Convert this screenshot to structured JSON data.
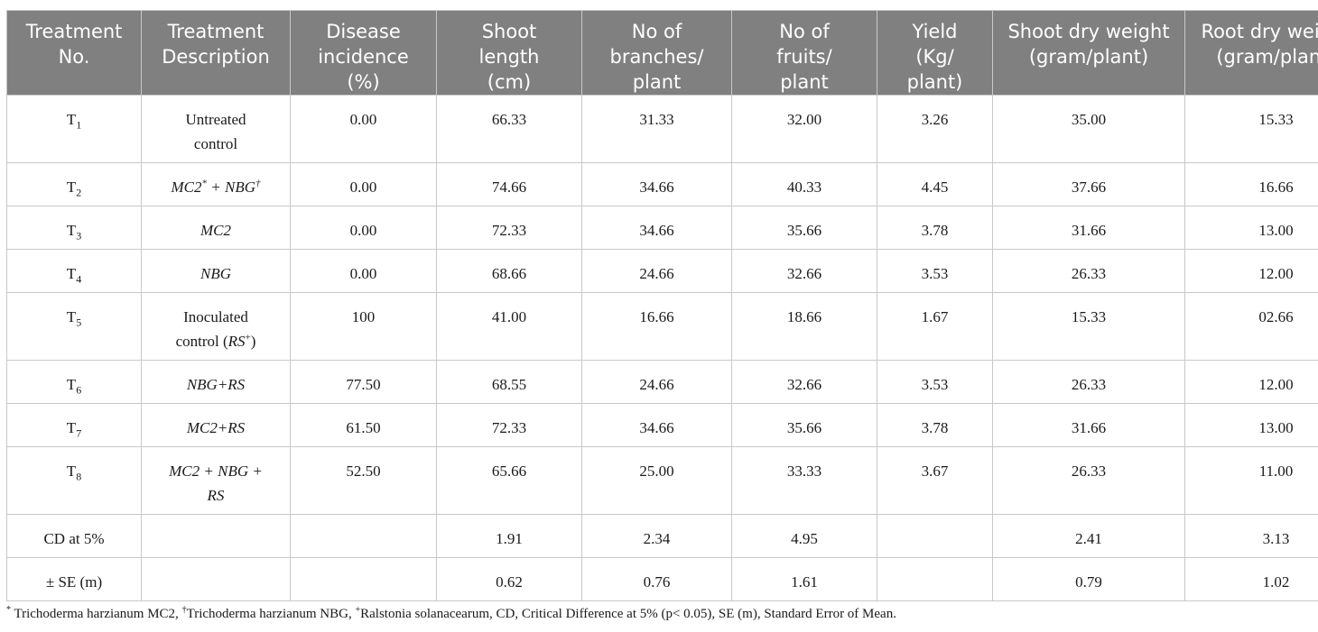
{
  "table": {
    "headers": [
      [
        "Treatment",
        "No."
      ],
      [
        "Treatment",
        "Description"
      ],
      [
        "Disease",
        "incidence",
        "(%)"
      ],
      [
        "Shoot",
        "length",
        "(cm)"
      ],
      [
        "No of",
        "branches/",
        "plant"
      ],
      [
        "No of",
        "fruits/",
        "plant"
      ],
      [
        "Yield",
        "(Kg/",
        "plant)"
      ],
      [
        "Shoot dry weight",
        "(gram/plant)"
      ],
      [
        "Root dry weight",
        "(gram/plant)"
      ]
    ],
    "rows": [
      {
        "no": "T",
        "sub": "1",
        "desc": [
          "Untreated",
          "control"
        ],
        "disease": "0.00",
        "shoot": "66.33",
        "branches": "31.33",
        "fruits": "32.00",
        "yield": "3.26",
        "sdw": "35.00",
        "rdw": "15.33"
      },
      {
        "no": "T",
        "sub": "2",
        "desc_a": "MC2",
        "desc_a_sup": "*",
        "desc_mid": " + ",
        "desc_b": "NBG",
        "desc_b_sup": "†",
        "disease": "0.00",
        "shoot": "74.66",
        "branches": "34.66",
        "fruits": "40.33",
        "yield": "4.45",
        "sdw": "37.66",
        "rdw": "16.66"
      },
      {
        "no": "T",
        "sub": "3",
        "desc": [
          "MC2"
        ],
        "disease": "0.00",
        "shoot": "72.33",
        "branches": "34.66",
        "fruits": "35.66",
        "yield": "3.78",
        "sdw": "31.66",
        "rdw": "13.00"
      },
      {
        "no": "T",
        "sub": "4",
        "desc": [
          "NBG"
        ],
        "disease": "0.00",
        "shoot": "68.66",
        "branches": "24.66",
        "fruits": "32.66",
        "yield": "3.53",
        "sdw": "26.33",
        "rdw": "12.00"
      },
      {
        "no": "T",
        "sub": "5",
        "desc_line1": "Inoculated",
        "desc_line2_pre": "control (",
        "desc_line2_it": "RS",
        "desc_line2_sup": "+",
        "desc_line2_post": ")",
        "disease": "100",
        "shoot": "41.00",
        "branches": "16.66",
        "fruits": "18.66",
        "yield": "1.67",
        "sdw": "15.33",
        "rdw": "02.66"
      },
      {
        "no": "T",
        "sub": "6",
        "desc": [
          "NBG+RS"
        ],
        "disease": "77.50",
        "shoot": "68.55",
        "branches": "24.66",
        "fruits": "32.66",
        "yield": "3.53",
        "sdw": "26.33",
        "rdw": "12.00"
      },
      {
        "no": "T",
        "sub": "7",
        "desc": [
          "MC2+RS"
        ],
        "disease": "61.50",
        "shoot": "72.33",
        "branches": "34.66",
        "fruits": "35.66",
        "yield": "3.78",
        "sdw": "31.66",
        "rdw": "13.00"
      },
      {
        "no": "T",
        "sub": "8",
        "desc": [
          "MC2 + NBG +",
          "RS"
        ],
        "disease": "52.50",
        "shoot": "65.66",
        "branches": "25.00",
        "fruits": "33.33",
        "yield": "3.67",
        "sdw": "26.33",
        "rdw": "11.00"
      }
    ],
    "summary": [
      {
        "label": "CD at 5%",
        "shoot": "1.91",
        "branches": "2.34",
        "fruits": "4.95",
        "sdw": "2.41",
        "rdw": "3.13"
      },
      {
        "label": "± SE (m)",
        "shoot": "0.62",
        "branches": "0.76",
        "fruits": "1.61",
        "sdw": "0.79",
        "rdw": "1.02"
      }
    ]
  },
  "footnote": {
    "s1": "*",
    "t1": " Trichoderma harzianum MC2, ",
    "s2": "†",
    "t2": "Trichoderma harzianum NBG, ",
    "s3": "+",
    "t3": "Ralstonia solanacearum, CD, Critical Difference at 5% (p< 0.05), SE (m), Standard Error of Mean."
  }
}
